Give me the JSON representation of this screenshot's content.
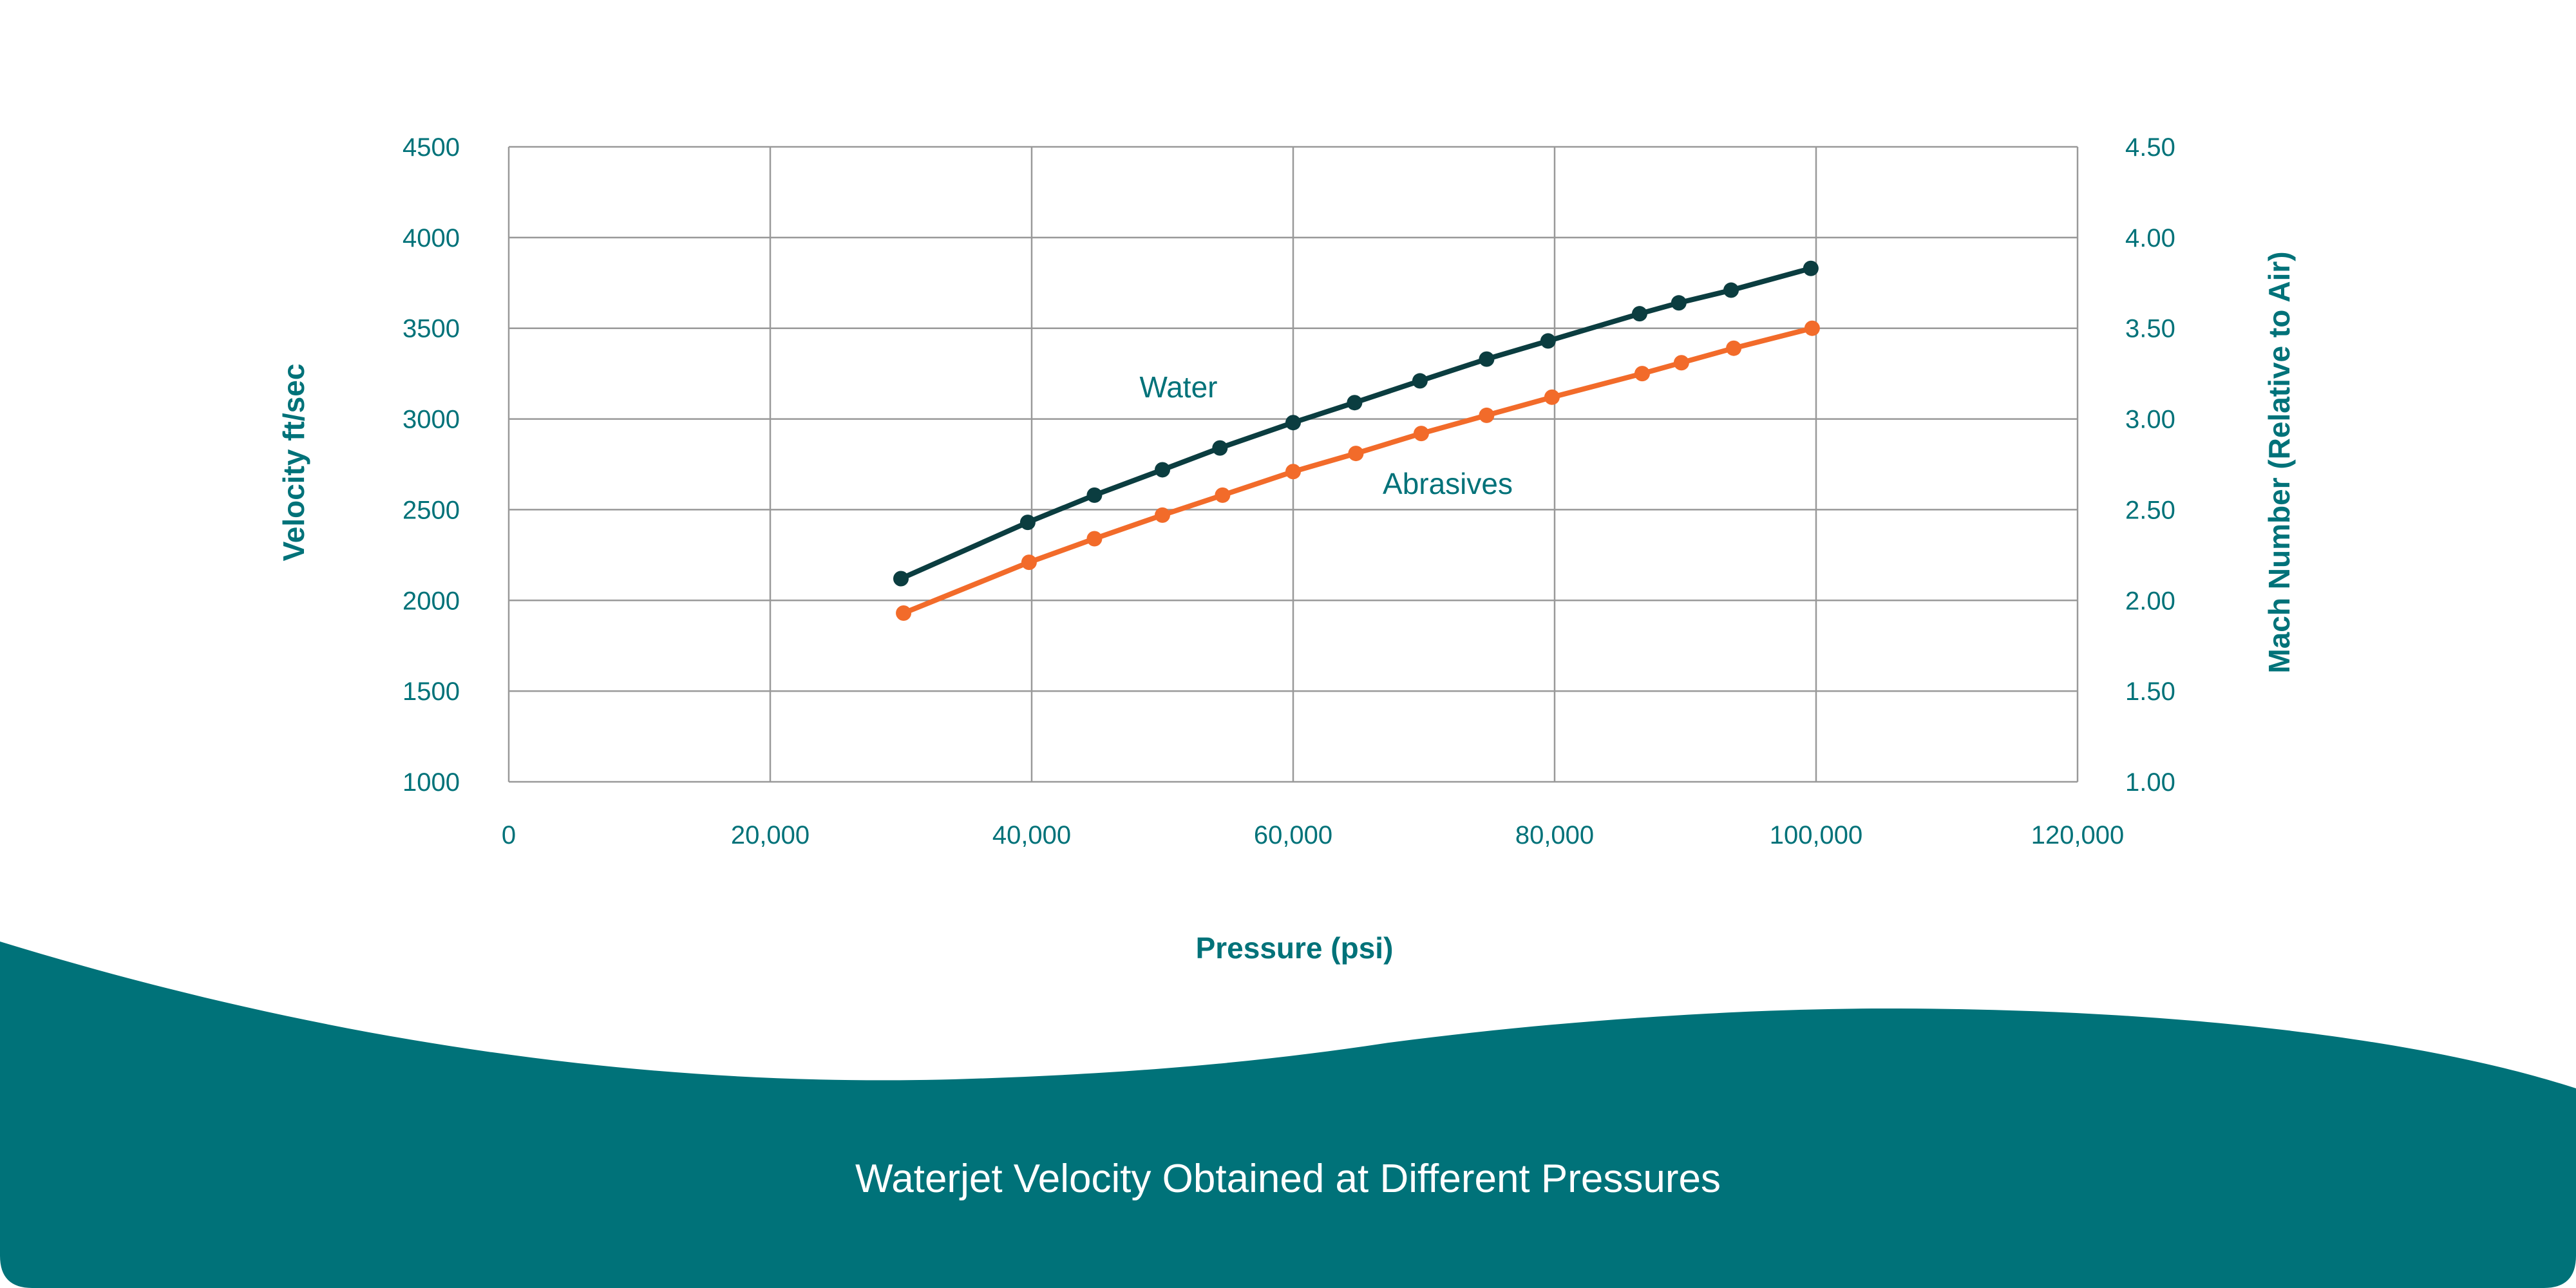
{
  "chart_data": {
    "type": "line",
    "caption": "Waterjet Velocity Obtained at Different Pressures",
    "xlabel": "Pressure (psi)",
    "ylabel": "Velocity ft/sec",
    "y2label": "Mach Number (Relative to Air)",
    "xlim": [
      0,
      120000
    ],
    "ylim": [
      1000,
      4500
    ],
    "y2lim": [
      1.0,
      4.5
    ],
    "x_ticks": [
      "0",
      "20,000",
      "40,000",
      "60,000",
      "80,000",
      "100,000",
      "120,000"
    ],
    "y_ticks": [
      "1000",
      "1500",
      "2000",
      "2500",
      "3000",
      "3500",
      "4000",
      "4500"
    ],
    "y2_ticks": [
      "1.00",
      "1.50",
      "2.00",
      "2.50",
      "3.00",
      "3.50",
      "4.00",
      "4.50"
    ],
    "grid": true,
    "series": [
      {
        "name": "Water",
        "color": "#0b3d40",
        "x": [
          30000,
          39700,
          44800,
          50000,
          54400,
          60000,
          64700,
          69700,
          74800,
          79500,
          86500,
          89500,
          93500,
          99600
        ],
        "y": [
          2120,
          2430,
          2580,
          2720,
          2840,
          2980,
          3090,
          3210,
          3330,
          3430,
          3580,
          3640,
          3710,
          3830
        ]
      },
      {
        "name": "Abrasives",
        "color": "#f26b2a",
        "x": [
          30200,
          39800,
          44800,
          50000,
          54600,
          60000,
          64800,
          69800,
          74800,
          79800,
          86700,
          89700,
          93700,
          99700
        ],
        "y": [
          1930,
          2210,
          2340,
          2470,
          2580,
          2710,
          2810,
          2920,
          3020,
          3120,
          3250,
          3310,
          3390,
          3500
        ]
      }
    ]
  },
  "colors": {
    "accent": "#007279",
    "grid": "#999999",
    "background": "#ffffff"
  }
}
